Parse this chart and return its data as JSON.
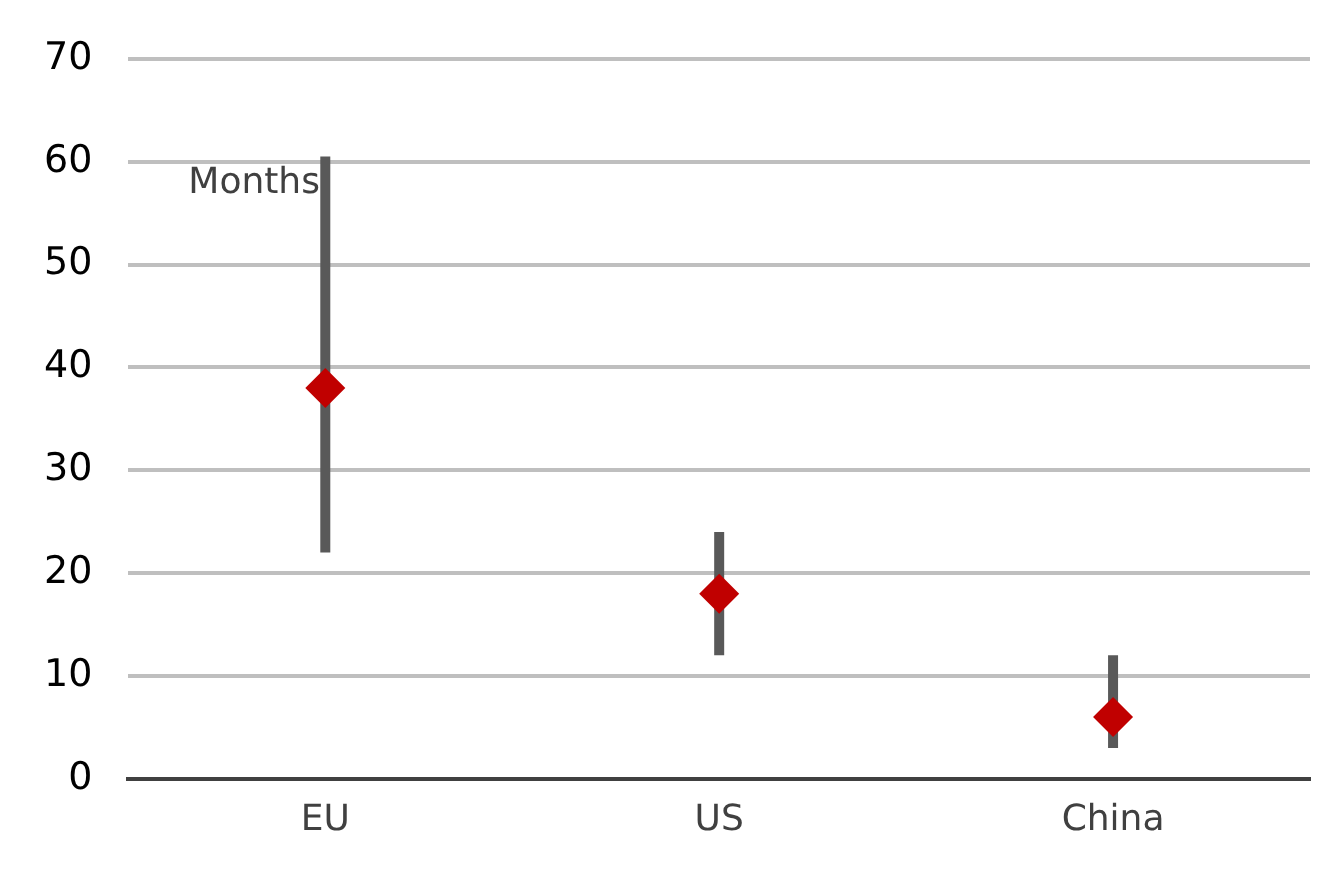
{
  "chart_data": {
    "type": "scatter",
    "ylabel": "Months",
    "categories": [
      "EU",
      "US",
      "China"
    ],
    "series": [
      {
        "color": "#c00000",
        "values": [
          38,
          18,
          6
        ],
        "errors": [
          [
            22,
            60.5
          ],
          [
            12,
            24
          ],
          [
            3,
            12
          ]
        ]
      }
    ],
    "ylim": [
      0,
      70
    ],
    "yticks": [
      0,
      10,
      20,
      30,
      40,
      50,
      60,
      70
    ],
    "grid": "y",
    "legend": false,
    "marker": "diamond"
  }
}
